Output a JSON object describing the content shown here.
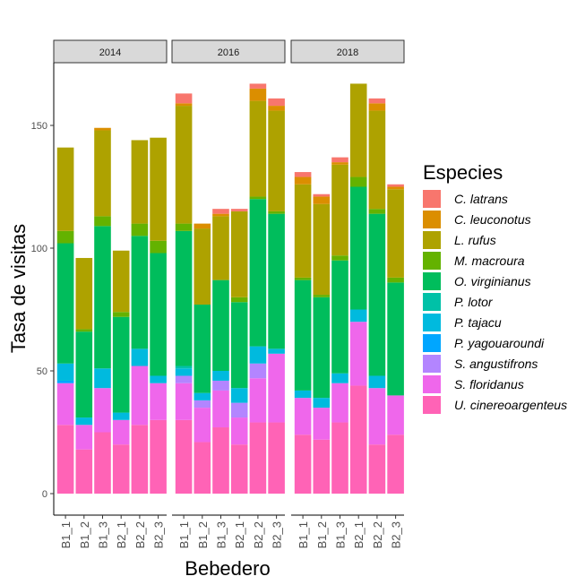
{
  "chart_data": {
    "type": "bar",
    "stacked": true,
    "facet_var_values": [
      "2014",
      "2016",
      "2018"
    ],
    "categories": [
      "B1_1",
      "B1_2",
      "B1_3",
      "B2_1",
      "B2_2",
      "B2_3"
    ],
    "xlabel": "Bebedero",
    "ylabel": "Tasa de visitas",
    "ylim": [
      0,
      175
    ],
    "yticks": [
      0,
      50,
      100,
      150
    ],
    "grid": false,
    "legend_title": "Especies",
    "legend_position": "right",
    "series": [
      {
        "name": "C. latrans",
        "color": "#F8766D",
        "values": [
          [
            0,
            0,
            0,
            0,
            0,
            0
          ],
          [
            4,
            0,
            2,
            1,
            2,
            3
          ],
          [
            2,
            1,
            2,
            0,
            2,
            1
          ]
        ]
      },
      {
        "name": "C. leuconotus",
        "color": "#DB8E00",
        "values": [
          [
            0,
            0,
            1,
            0,
            0,
            0
          ],
          [
            1,
            2,
            1,
            0,
            5,
            2
          ],
          [
            3,
            3,
            1,
            0,
            3,
            1
          ]
        ]
      },
      {
        "name": "L. rufus",
        "color": "#AEA200",
        "values": [
          [
            34,
            29,
            35,
            25,
            34,
            42
          ],
          [
            48,
            31,
            26,
            35,
            39,
            41
          ],
          [
            38,
            37,
            37,
            38,
            40,
            36
          ]
        ]
      },
      {
        "name": "M. macroura",
        "color": "#64B200",
        "values": [
          [
            5,
            1,
            4,
            2,
            5,
            5
          ],
          [
            3,
            0,
            0,
            2,
            1,
            1
          ],
          [
            1,
            1,
            2,
            4,
            2,
            2
          ]
        ]
      },
      {
        "name": "O. virginianus",
        "color": "#00BD5C",
        "values": [
          [
            49,
            35,
            58,
            39,
            46,
            50
          ],
          [
            55,
            36,
            37,
            35,
            60,
            55
          ],
          [
            45,
            41,
            46,
            50,
            66,
            46
          ]
        ]
      },
      {
        "name": "P. lotor",
        "color": "#00C1A7",
        "values": [
          [
            0,
            0,
            0,
            0,
            0,
            0
          ],
          [
            1,
            0,
            0,
            0,
            0,
            0
          ],
          [
            0,
            0,
            0,
            0,
            0,
            0
          ]
        ]
      },
      {
        "name": "P. tajacu",
        "color": "#00BADE",
        "values": [
          [
            7,
            3,
            8,
            3,
            7,
            3
          ],
          [
            3,
            3,
            4,
            6,
            7,
            2
          ],
          [
            3,
            4,
            4,
            5,
            5,
            0
          ]
        ]
      },
      {
        "name": "P. yagouaroundi",
        "color": "#00A6FF",
        "values": [
          [
            1,
            0,
            0,
            0,
            0,
            0
          ],
          [
            0,
            0,
            0,
            0,
            0,
            0
          ],
          [
            0,
            0,
            0,
            0,
            0,
            0
          ]
        ]
      },
      {
        "name": "S. angustifrons",
        "color": "#B385FF",
        "values": [
          [
            0,
            0,
            0,
            0,
            0,
            0
          ],
          [
            3,
            3,
            4,
            6,
            6,
            0
          ],
          [
            0,
            0,
            0,
            0,
            0,
            0
          ]
        ]
      },
      {
        "name": "S. floridanus",
        "color": "#EF67EB",
        "values": [
          [
            17,
            10,
            18,
            10,
            24,
            15
          ],
          [
            15,
            14,
            15,
            11,
            18,
            28
          ],
          [
            15,
            13,
            16,
            26,
            23,
            16
          ]
        ]
      },
      {
        "name": "U. cinereoargenteus",
        "color": "#FF63B6",
        "values": [
          [
            28,
            18,
            25,
            20,
            28,
            30
          ],
          [
            30,
            21,
            27,
            20,
            29,
            29
          ],
          [
            24,
            22,
            29,
            44,
            20,
            24
          ]
        ]
      }
    ]
  }
}
